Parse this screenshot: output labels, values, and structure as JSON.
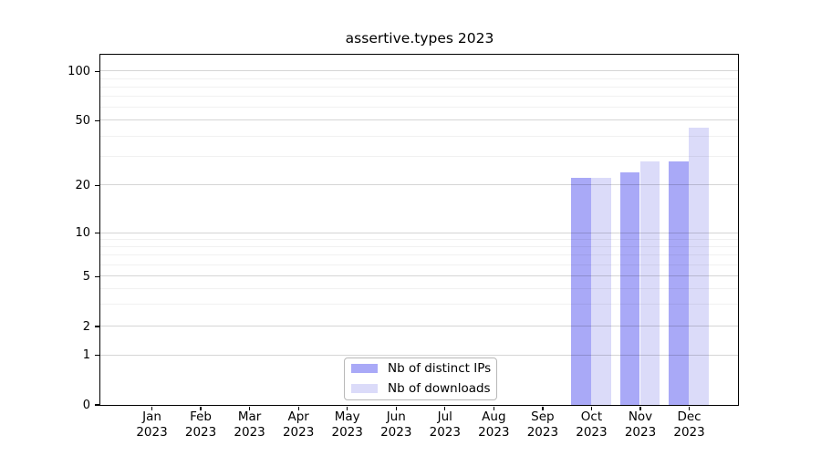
{
  "chart_data": {
    "type": "bar",
    "title": "assertive.types 2023",
    "categories": [
      "Jan 2023",
      "Feb 2023",
      "Mar 2023",
      "Apr 2023",
      "May 2023",
      "Jun 2023",
      "Jul 2023",
      "Aug 2023",
      "Sep 2023",
      "Oct 2023",
      "Nov 2023",
      "Dec 2023"
    ],
    "series": [
      {
        "name": "Nb of distinct IPs",
        "color": "#a9a9f7",
        "values": [
          null,
          null,
          null,
          null,
          null,
          null,
          null,
          null,
          null,
          22,
          24,
          28
        ]
      },
      {
        "name": "Nb of downloads",
        "color": "#dbdbf9",
        "values": [
          null,
          null,
          null,
          null,
          null,
          null,
          null,
          null,
          null,
          22,
          28,
          45
        ]
      }
    ],
    "y_ticks": [
      0,
      1,
      2,
      5,
      10,
      20,
      50,
      100
    ],
    "y_minor_gridlines": [
      3,
      4,
      6,
      7,
      8,
      9,
      30,
      40,
      60,
      70,
      80,
      90
    ],
    "y_scale": "log-like",
    "ylim": [
      0,
      110
    ],
    "grid": true,
    "legend_position": "lower center"
  },
  "colors": {
    "background": "#ffffff",
    "axis": "#000000",
    "text": "#000000",
    "major_grid": "#d6d6d6",
    "minor_grid": "#f0f0f0",
    "series_ips": "#a9a9f7",
    "series_downloads": "#dbdbf9"
  }
}
